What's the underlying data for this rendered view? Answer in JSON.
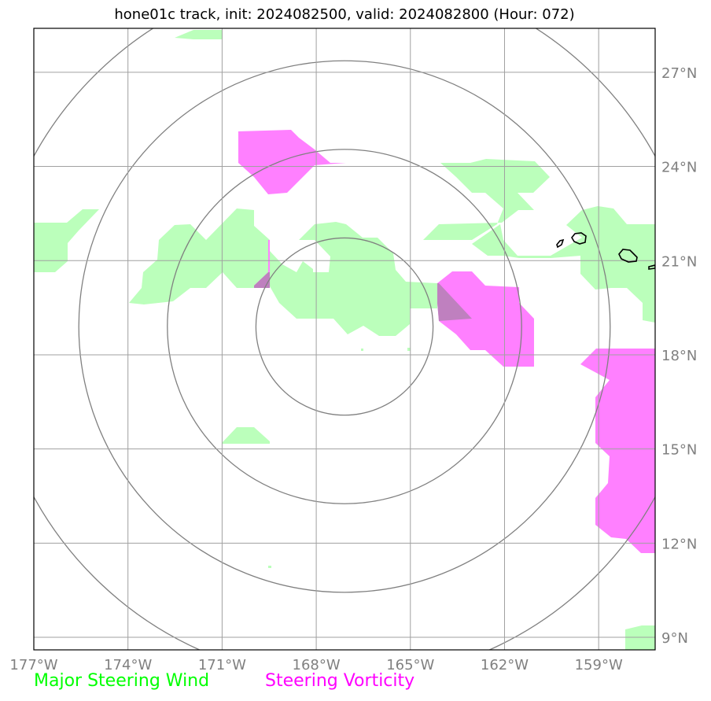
{
  "title": "hone01c track, init: 2024082500, valid: 2024082800 (Hour: 072)",
  "map": {
    "lon_range": [
      -177,
      -157.2
    ],
    "lat_range": [
      8.6,
      28.4
    ],
    "center": {
      "lon": -167.1,
      "lat": 18.9
    },
    "range_ring_count": 4,
    "lon_ticks": [
      {
        "value": -177,
        "label": "177°W"
      },
      {
        "value": -174,
        "label": "174°W"
      },
      {
        "value": -171,
        "label": "171°W"
      },
      {
        "value": -168,
        "label": "168°W"
      },
      {
        "value": -165,
        "label": "165°W"
      },
      {
        "value": -162,
        "label": "162°W"
      },
      {
        "value": -159,
        "label": "159°W"
      }
    ],
    "lat_ticks": [
      {
        "value": 27,
        "label": "27°N"
      },
      {
        "value": 24,
        "label": "24°N"
      },
      {
        "value": 21,
        "label": "21°N"
      },
      {
        "value": 18,
        "label": "18°N"
      },
      {
        "value": 15,
        "label": "15°N"
      },
      {
        "value": 12,
        "label": "12°N"
      },
      {
        "value": 9,
        "label": "9°N"
      }
    ],
    "gridlines": true
  },
  "legend": {
    "wind_label": "Major Steering Wind",
    "vorticity_label": "Steering Vorticity"
  },
  "colors": {
    "wind_fill": "#bbffbb",
    "wind_text": "#00ff00",
    "vorticity_fill": "#ff80ff",
    "vorticity_text": "#ff00ff",
    "overlap_fill": "#bf80bf",
    "gridline": "#a0a0a0",
    "ring": "#808080",
    "tick_text": "#808080",
    "coastline": "#000000"
  }
}
